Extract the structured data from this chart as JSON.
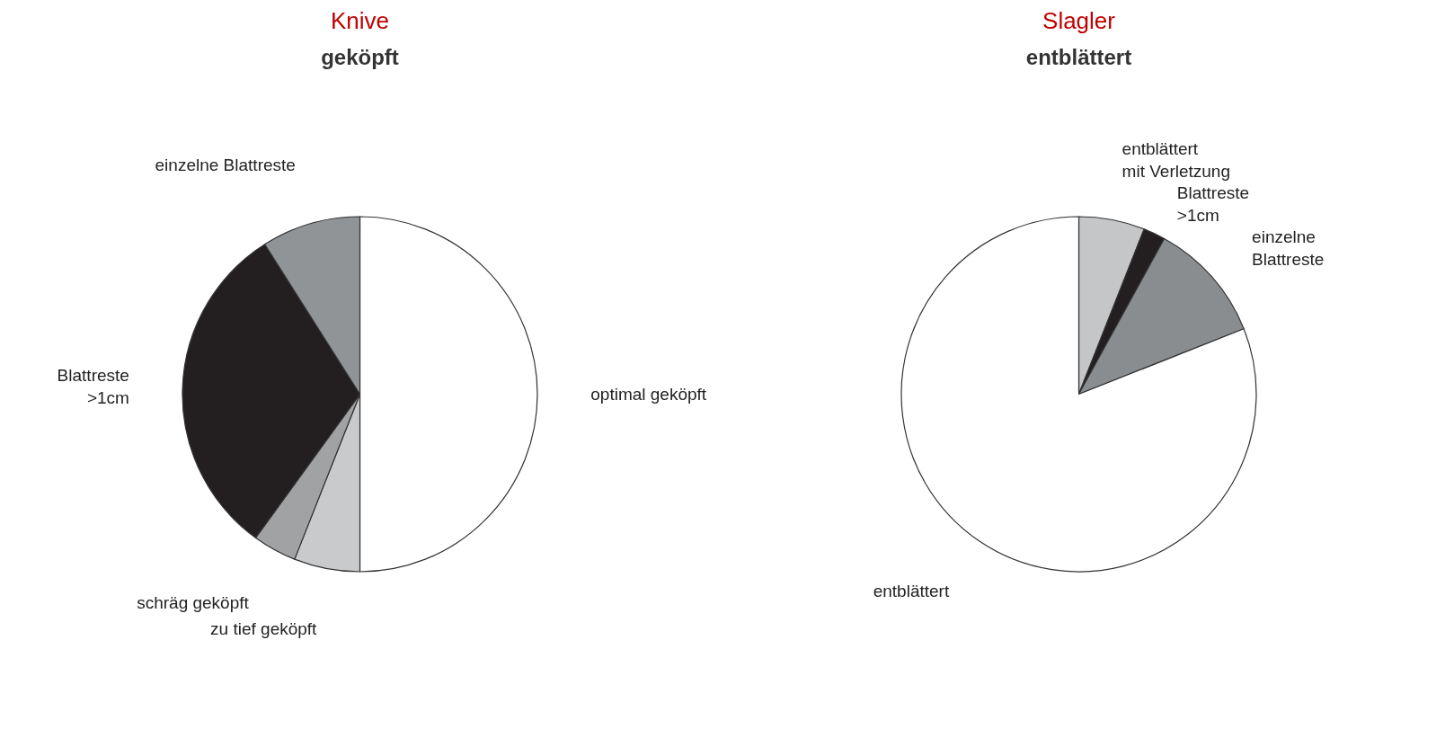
{
  "chart_data": [
    {
      "type": "pie",
      "title": "Knive",
      "subtitle": "geköpft",
      "categories": [
        "optimal geköpft",
        "zu tief geköpft",
        "schräg geköpft",
        "Blattreste\n>1cm",
        "einzelne Blattreste"
      ],
      "values": [
        50,
        6,
        4,
        31,
        9
      ],
      "colors": [
        "#ffffff",
        "#c8cacc",
        "#a0a2a4",
        "#231f20",
        "#909497"
      ]
    },
    {
      "type": "pie",
      "title": "Slagler",
      "subtitle": "entblättert",
      "categories": [
        "entblättert\nmit Verletzung",
        "Blattreste\n>1cm",
        "einzelne\nBlattreste",
        "entblättert"
      ],
      "values": [
        6,
        2,
        11,
        81
      ],
      "colors": [
        "#c4c6c8",
        "#231f20",
        "#8a8d90",
        "#ffffff"
      ]
    }
  ]
}
